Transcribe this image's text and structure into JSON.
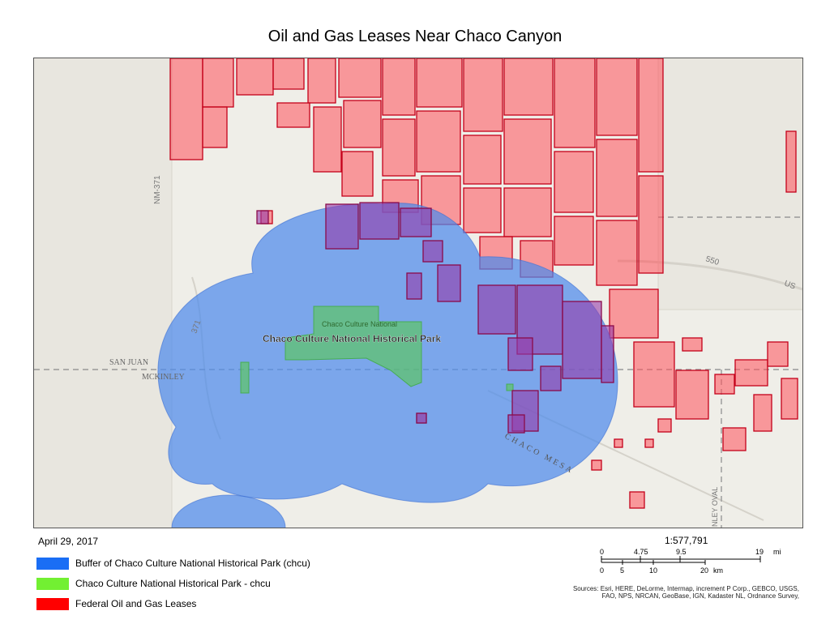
{
  "title": "Oil and Gas Leases Near Chaco Canyon",
  "date": "April 29, 2017",
  "map": {
    "park_label": "Chaco Culture National Historical Park",
    "park_inner_label": "Chaco Culture National",
    "place_labels": {
      "san_juan": "SAN JUAN",
      "mckinley": "MCKINLEY",
      "chaco_mesa": "CHACO MESA",
      "nm371": "NM-371",
      "route_371": "371",
      "route_550": "550",
      "us": "US",
      "mckinley_ovals": "NLEY OVAL"
    }
  },
  "legend": [
    {
      "label": "Buffer of Chaco Culture National Historical Park (chcu)",
      "color": "#1a6ef5"
    },
    {
      "label": "Chaco Culture National Historical Park - chcu",
      "color": "#72f032"
    },
    {
      "label": "Federal Oil and Gas Leases",
      "color": "#ff0000"
    }
  ],
  "scale": {
    "ratio": "1:577,791",
    "mi_ticks": [
      "0",
      "4.75",
      "9.5",
      "19"
    ],
    "mi_unit": "mi",
    "km_ticks": [
      "0",
      "5",
      "10",
      "20"
    ],
    "km_unit": "km"
  },
  "credits": "Sources: Esri, HERE, DeLorme, Intermap, increment P Corp., GEBCO, USGS, FAO, NPS, NRCAN, GeoBase, IGN, Kadaster NL, Ordnance Survey,"
}
